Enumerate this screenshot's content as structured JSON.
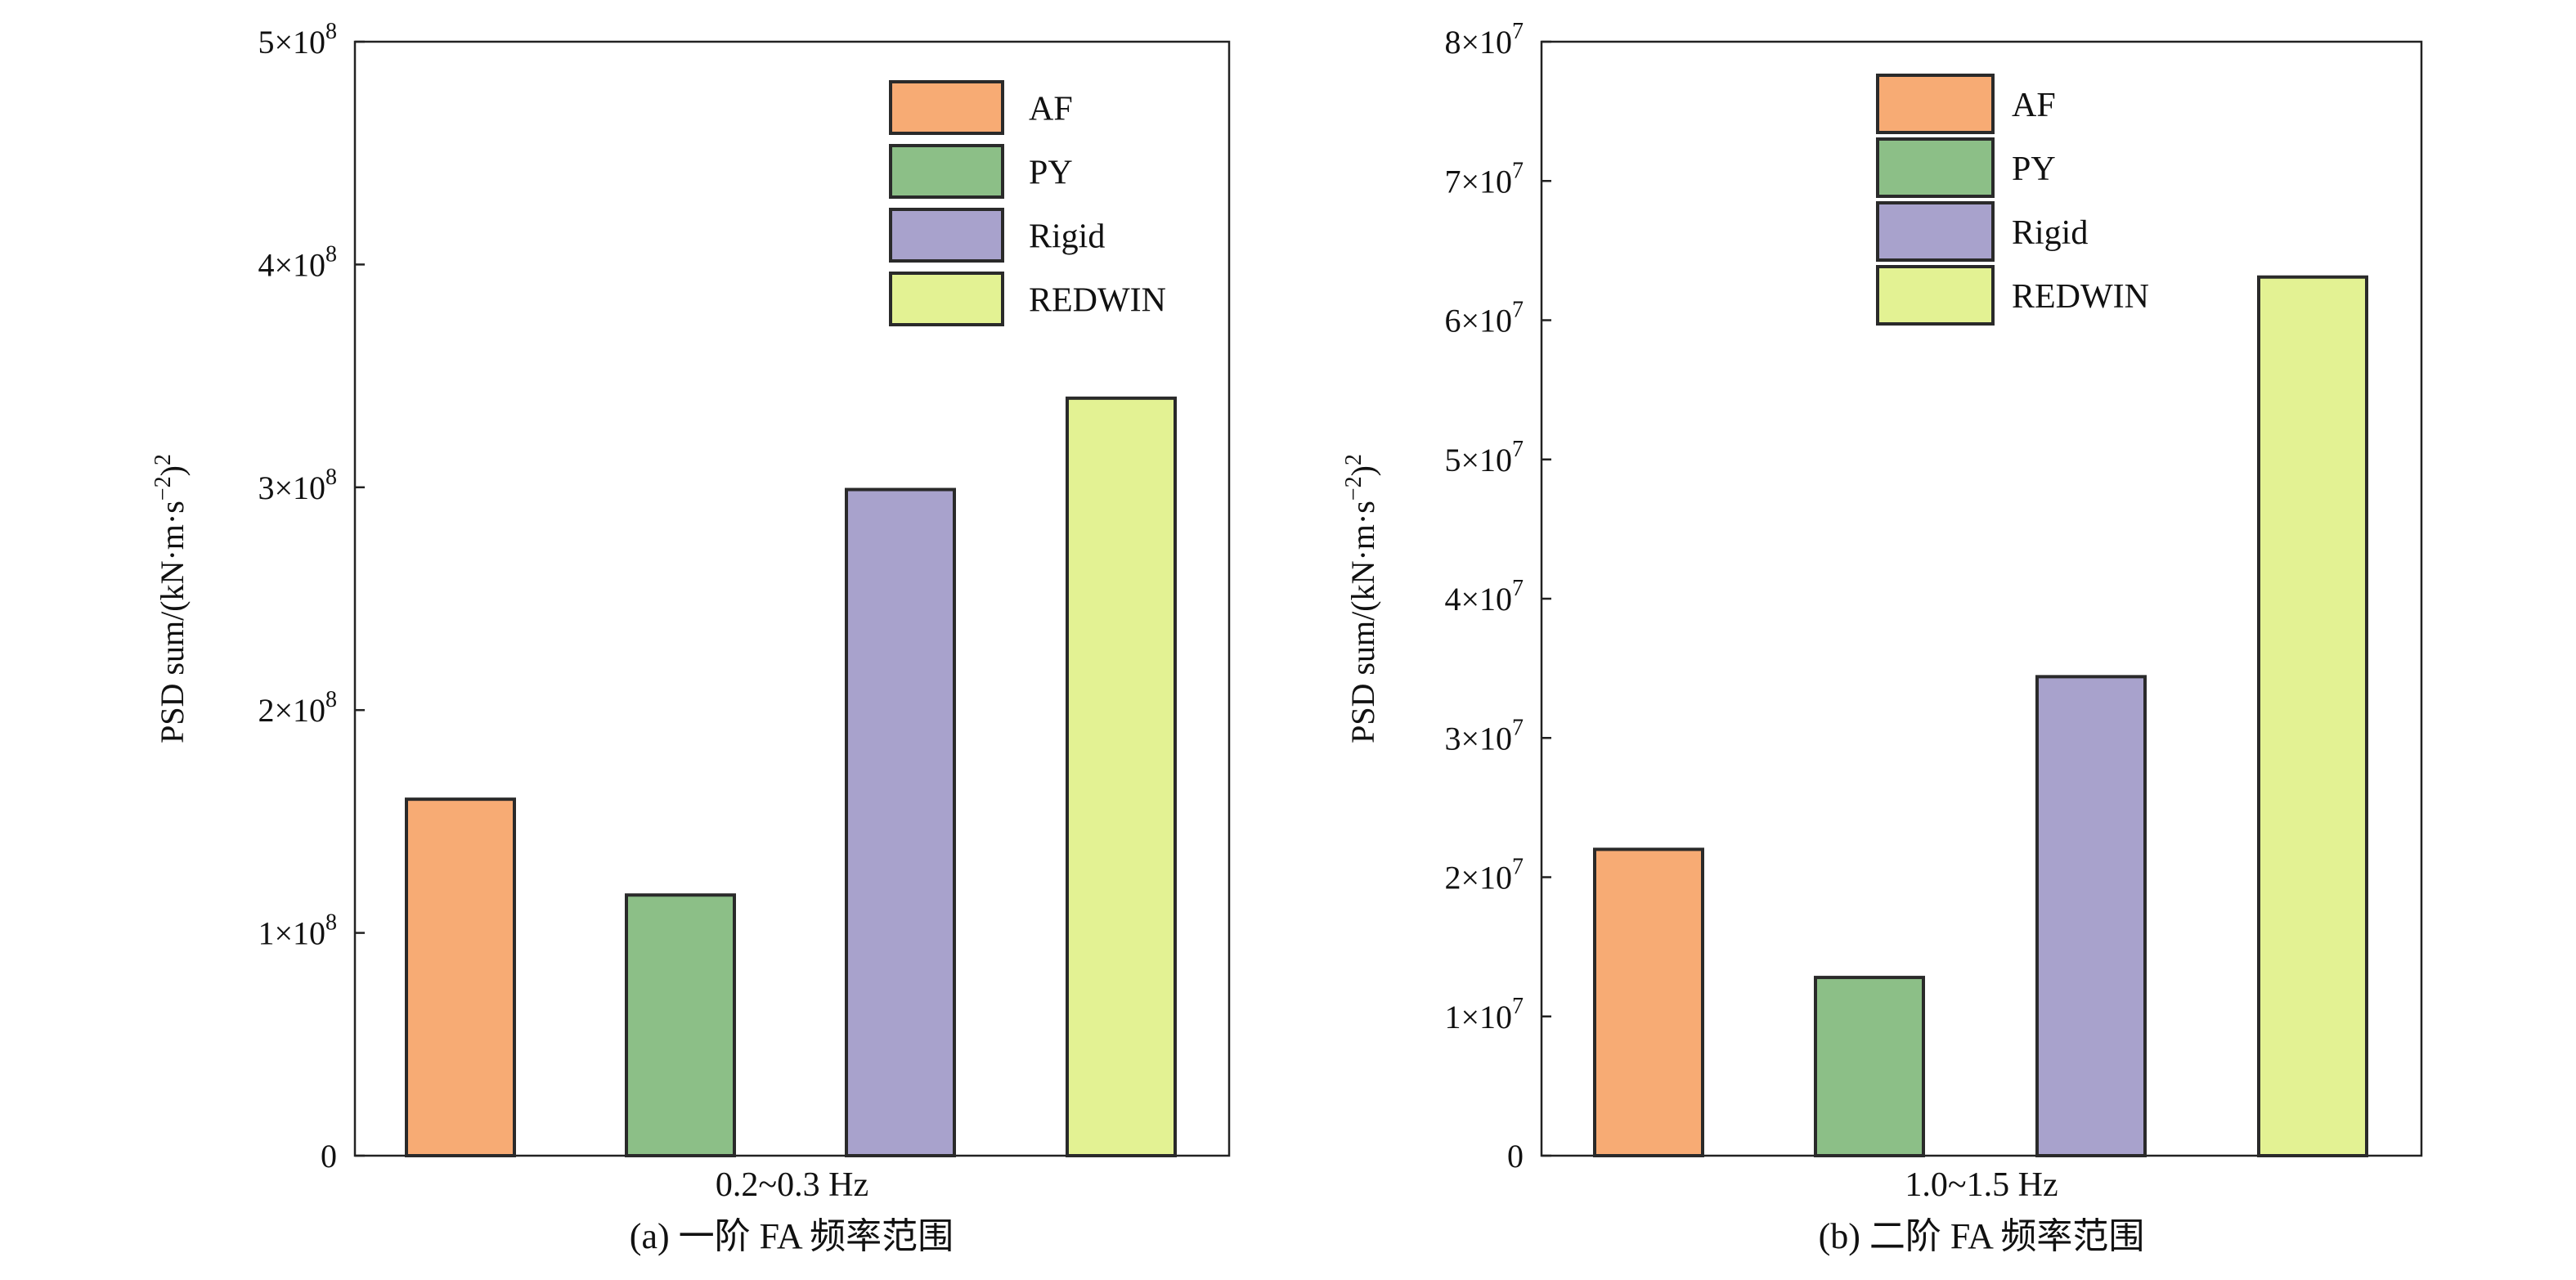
{
  "chart_data": [
    {
      "type": "bar",
      "categories": [
        "AF",
        "PY",
        "Rigid",
        "REDWIN"
      ],
      "values": [
        160000000,
        117000000,
        299000000,
        340000000
      ],
      "colors": [
        "#F7AB74",
        "#8CBF87",
        "#A8A2CC",
        "#E3F293"
      ],
      "legend": [
        "AF",
        "PY",
        "Rigid",
        "REDWIN"
      ],
      "legend_position": "top-right",
      "ylim": [
        0,
        500000000
      ],
      "yticks": [
        0,
        100000000,
        200000000,
        300000000,
        400000000,
        500000000
      ],
      "ytick_labels": [
        {
          "mant": "0",
          "exp": ""
        },
        {
          "mant": "1×10",
          "exp": "8"
        },
        {
          "mant": "2×10",
          "exp": "8"
        },
        {
          "mant": "3×10",
          "exp": "8"
        },
        {
          "mant": "4×10",
          "exp": "8"
        },
        {
          "mant": "5×10",
          "exp": "8"
        }
      ],
      "ylabel": {
        "main": "PSD sum/(kN·m·s",
        "sup1": "−2",
        "mid": ")",
        "sup2": "2"
      },
      "xlabel": "0.2~0.3 Hz",
      "caption": "(a) 一阶 FA 频率范围",
      "grid": false
    },
    {
      "type": "bar",
      "categories": [
        "AF",
        "PY",
        "Rigid",
        "REDWIN"
      ],
      "values": [
        22000000,
        12800000,
        34400000,
        63100000
      ],
      "colors": [
        "#F7AB74",
        "#8CBF87",
        "#A8A2CC",
        "#E3F293"
      ],
      "legend": [
        "AF",
        "PY",
        "Rigid",
        "REDWIN"
      ],
      "legend_position": "top-right",
      "ylim": [
        0,
        80000000
      ],
      "yticks": [
        0,
        10000000,
        20000000,
        30000000,
        40000000,
        50000000,
        60000000,
        70000000,
        80000000
      ],
      "ytick_labels": [
        {
          "mant": "0",
          "exp": ""
        },
        {
          "mant": "1×10",
          "exp": "7"
        },
        {
          "mant": "2×10",
          "exp": "7"
        },
        {
          "mant": "3×10",
          "exp": "7"
        },
        {
          "mant": "4×10",
          "exp": "7"
        },
        {
          "mant": "5×10",
          "exp": "7"
        },
        {
          "mant": "6×10",
          "exp": "7"
        },
        {
          "mant": "7×10",
          "exp": "7"
        },
        {
          "mant": "8×10",
          "exp": "7"
        }
      ],
      "ylabel": {
        "main": "PSD sum/(kN·m·s",
        "sup1": "−2",
        "mid": ")",
        "sup2": "2"
      },
      "xlabel": "1.0~1.5 Hz",
      "caption": "(b) 二阶 FA 频率范围",
      "grid": false
    }
  ]
}
